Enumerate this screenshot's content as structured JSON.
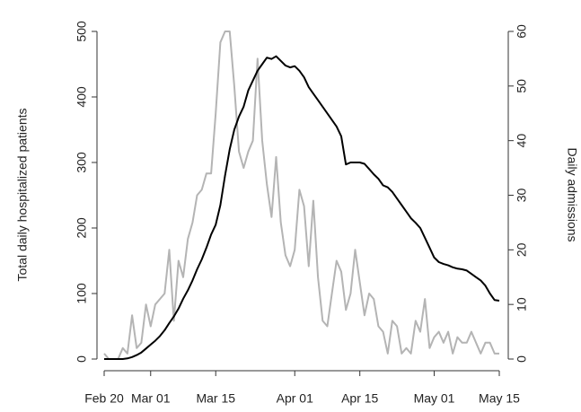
{
  "chart_data": {
    "type": "line",
    "y_label": "Total daily hospitalized patients",
    "y2_label": "Daily admissions",
    "x": [
      "Feb 20",
      "Feb 21",
      "Feb 22",
      "Feb 23",
      "Feb 24",
      "Feb 25",
      "Feb 26",
      "Feb 27",
      "Feb 28",
      "Feb 29",
      "Mar 01",
      "Mar 02",
      "Mar 03",
      "Mar 04",
      "Mar 05",
      "Mar 06",
      "Mar 07",
      "Mar 08",
      "Mar 09",
      "Mar 10",
      "Mar 11",
      "Mar 12",
      "Mar 13",
      "Mar 14",
      "Mar 15",
      "Mar 16",
      "Mar 17",
      "Mar 18",
      "Mar 19",
      "Mar 20",
      "Mar 21",
      "Mar 22",
      "Mar 23",
      "Mar 24",
      "Mar 25",
      "Mar 26",
      "Mar 27",
      "Mar 28",
      "Mar 29",
      "Mar 30",
      "Mar 31",
      "Apr 01",
      "Apr 02",
      "Apr 03",
      "Apr 04",
      "Apr 05",
      "Apr 06",
      "Apr 07",
      "Apr 08",
      "Apr 09",
      "Apr 10",
      "Apr 11",
      "Apr 12",
      "Apr 13",
      "Apr 14",
      "Apr 15",
      "Apr 16",
      "Apr 17",
      "Apr 18",
      "Apr 19",
      "Apr 20",
      "Apr 21",
      "Apr 22",
      "Apr 23",
      "Apr 24",
      "Apr 25",
      "Apr 26",
      "Apr 27",
      "Apr 28",
      "Apr 29",
      "Apr 30",
      "May 01",
      "May 02",
      "May 03",
      "May 04",
      "May 05",
      "May 06",
      "May 07",
      "May 08",
      "May 09",
      "May 10",
      "May 11",
      "May 12",
      "May 13",
      "May 14",
      "May 15"
    ],
    "xticks": [
      "Feb 20",
      "Mar 01",
      "Mar 15",
      "Apr 01",
      "Apr 15",
      "May 01",
      "May 15"
    ],
    "series": [
      {
        "name": "Total daily hospitalized patients",
        "color": "#000000",
        "axis": "y",
        "values": [
          0,
          0,
          0,
          0,
          0,
          1,
          3,
          6,
          10,
          16,
          22,
          28,
          35,
          44,
          55,
          65,
          77,
          92,
          105,
          120,
          137,
          152,
          170,
          190,
          205,
          235,
          280,
          320,
          350,
          370,
          385,
          410,
          425,
          440,
          450,
          460,
          458,
          462,
          455,
          448,
          445,
          447,
          440,
          430,
          415,
          405,
          395,
          385,
          375,
          365,
          355,
          340,
          297,
          300,
          300,
          300,
          298,
          290,
          282,
          275,
          265,
          262,
          255,
          245,
          235,
          225,
          215,
          208,
          200,
          185,
          170,
          155,
          148,
          145,
          143,
          140,
          138,
          137,
          135,
          130,
          125,
          120,
          112,
          100,
          90,
          89
        ]
      },
      {
        "name": "Daily admissions",
        "color": "#b4b4b4",
        "axis": "y2",
        "values": [
          1,
          0,
          0,
          0,
          2,
          1,
          8,
          2,
          3,
          10,
          6,
          10,
          11,
          12,
          20,
          7,
          18,
          15,
          22,
          25,
          30,
          31,
          34,
          34,
          45,
          58,
          60,
          60,
          50,
          38,
          35,
          38,
          40,
          55,
          40,
          32,
          26,
          37,
          25,
          19,
          17,
          20,
          31,
          28,
          17,
          29,
          15,
          7,
          6,
          12,
          18,
          16,
          9,
          12,
          20,
          14,
          8,
          12,
          11,
          6,
          5,
          1,
          7,
          6,
          1,
          2,
          1,
          7,
          5,
          11,
          2,
          4,
          5,
          3,
          5,
          1,
          4,
          3,
          3,
          5,
          3,
          1,
          3,
          3,
          1,
          1
        ]
      }
    ],
    "ylim": [
      0,
      500
    ],
    "yticks": [
      0,
      100,
      200,
      300,
      400,
      500
    ],
    "y2lim": [
      0,
      60
    ],
    "y2ticks": [
      0,
      10,
      20,
      30,
      40,
      50,
      60
    ]
  }
}
